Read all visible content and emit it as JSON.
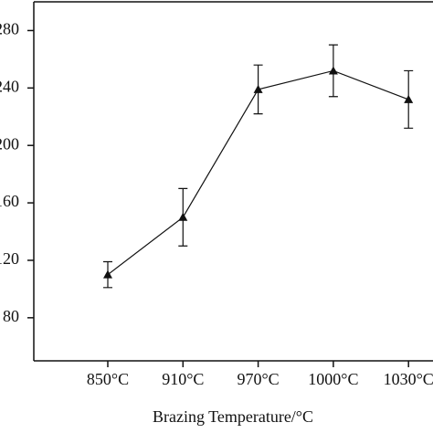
{
  "chart_data": {
    "type": "line",
    "x_label": "Brazing Temperature/°C",
    "categories": [
      "850°C",
      "910°C",
      "970°C",
      "1000°C",
      "1030°C"
    ],
    "values": [
      110,
      150,
      239,
      252,
      232
    ],
    "errors": [
      9,
      20,
      17,
      18,
      20
    ],
    "color": "#111111",
    "marker": "triangle",
    "ylim": [
      50,
      300
    ],
    "yticks": [
      80,
      120,
      160,
      200,
      240,
      280
    ]
  }
}
